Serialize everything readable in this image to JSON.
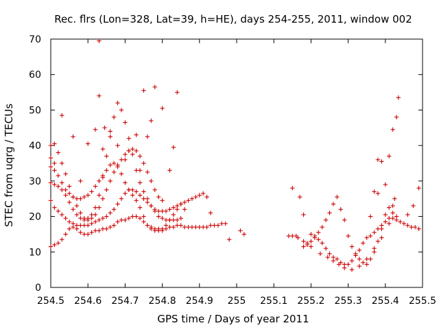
{
  "chart_data": {
    "type": "scatter",
    "title": "Rec. flrs (Lon=328, Lat=39, h=HE), days 254-255, 2011, window 002",
    "xlabel": "GPS time / Days of year 2011",
    "ylabel": "STEC from uqrg / TECUs",
    "xlim": [
      254.5,
      255.5
    ],
    "ylim": [
      0,
      70
    ],
    "xticks": [
      254.5,
      254.6,
      254.7,
      254.8,
      254.9,
      255.0,
      255.1,
      255.2,
      255.3,
      255.4,
      255.5
    ],
    "xtick_labels": [
      "254.5",
      "254.6",
      "254.7",
      "254.8",
      "254.9",
      "255",
      "255.1",
      "255.2",
      "255.3",
      "255.4",
      "255.5"
    ],
    "yticks": [
      0,
      10,
      20,
      30,
      40,
      50,
      60,
      70
    ],
    "ytick_labels": [
      "0",
      "10",
      "20",
      "30",
      "40",
      "50",
      "60",
      "70"
    ],
    "grid": false,
    "legend": "none",
    "marker": "+",
    "series": [
      {
        "color": "#cc0000",
        "x": [
          254.5,
          254.51,
          254.52,
          254.53,
          254.54,
          254.55,
          254.56,
          254.57,
          254.58,
          254.59,
          254.6,
          254.61,
          254.62,
          254.63,
          254.64,
          254.65,
          254.66,
          254.67,
          254.68,
          254.69,
          254.7,
          254.71,
          254.72,
          254.73,
          254.74,
          254.75,
          254.76,
          254.77,
          254.78,
          254.79,
          254.8,
          254.81,
          254.82,
          254.83,
          254.84,
          254.85,
          254.86,
          254.87,
          254.88,
          254.89,
          254.9,
          254.91,
          254.92,
          254.93,
          254.94,
          254.95,
          254.96,
          254.97,
          254.98,
          254.5,
          254.51,
          254.52,
          254.53,
          254.54,
          254.55,
          254.56,
          254.57,
          254.58,
          254.59,
          254.6,
          254.61,
          254.62,
          254.63,
          254.64,
          254.65,
          254.66,
          254.67,
          254.68,
          254.69,
          254.7,
          254.71,
          254.72,
          254.73,
          254.74,
          254.75,
          254.76,
          254.77,
          254.78,
          254.79,
          254.8,
          254.81,
          254.82,
          254.83,
          254.84,
          254.85,
          254.86,
          254.87,
          254.88,
          254.89,
          254.9,
          254.91,
          254.92,
          254.93,
          254.5,
          254.51,
          254.52,
          254.53,
          254.54,
          254.55,
          254.56,
          254.57,
          254.58,
          254.59,
          254.6,
          254.61,
          254.62,
          254.63,
          254.64,
          254.65,
          254.66,
          254.67,
          254.68,
          254.69,
          254.7,
          254.71,
          254.72,
          254.73,
          254.74,
          254.75,
          254.76,
          254.77,
          254.78,
          254.79,
          254.8,
          254.81,
          254.82,
          254.83,
          254.84,
          254.85,
          254.86,
          254.5,
          254.51,
          254.52,
          254.53,
          254.54,
          254.55,
          254.56,
          254.57,
          254.58,
          254.59,
          254.6,
          254.61,
          254.62,
          254.63,
          254.64,
          254.65,
          254.66,
          254.67,
          254.68,
          254.69,
          254.7,
          254.71,
          254.72,
          254.73,
          254.74,
          254.75,
          254.76,
          254.77,
          254.78,
          254.79,
          254.8,
          254.5,
          254.51,
          254.52,
          254.53,
          254.54,
          254.55,
          254.56,
          254.57,
          254.58,
          254.59,
          254.6,
          254.61,
          254.62,
          254.63,
          254.64,
          254.65,
          254.66,
          254.67,
          254.68,
          254.69,
          254.7,
          254.71,
          254.72,
          254.73,
          254.74,
          254.75,
          254.76,
          254.77,
          254.78,
          254.79,
          254.8,
          254.81,
          254.82,
          254.83,
          254.84,
          254.85,
          254.5,
          254.51,
          254.53,
          254.56,
          254.58,
          254.6,
          254.62,
          254.63,
          254.64,
          254.66,
          254.68,
          254.7,
          254.71,
          254.73,
          254.75,
          254.76,
          254.78,
          254.8,
          254.82,
          254.84,
          254.63,
          254.74,
          254.77,
          254.83,
          254.645,
          255.01,
          255.02,
          255.14,
          255.15,
          255.16,
          255.17,
          255.18,
          255.19,
          255.2,
          255.21,
          255.22,
          255.23,
          255.24,
          255.25,
          255.26,
          255.27,
          255.28,
          255.29,
          255.3,
          255.31,
          255.32,
          255.33,
          255.34,
          255.35,
          255.36,
          255.37,
          255.38,
          255.39,
          255.4,
          255.41,
          255.42,
          255.43,
          255.44,
          255.45,
          255.46,
          255.47,
          255.48,
          255.49,
          255.18,
          255.19,
          255.2,
          255.21,
          255.22,
          255.23,
          255.24,
          255.25,
          255.26,
          255.27,
          255.28,
          255.29,
          255.3,
          255.31,
          255.32,
          255.33,
          255.34,
          255.35,
          255.36,
          255.37,
          255.38,
          255.39,
          255.4,
          255.41,
          255.42,
          255.43,
          255.15,
          255.165,
          255.18,
          255.2,
          255.225,
          255.245,
          255.26,
          255.275,
          255.29,
          255.31,
          255.33,
          255.35,
          255.37,
          255.39,
          255.41,
          255.42,
          255.425,
          255.49,
          255.38,
          255.39,
          255.4,
          255.36,
          255.37,
          255.38
        ],
        "y": [
          11.5,
          12.0,
          12.5,
          13.5,
          15.0,
          16.5,
          17.0,
          16.5,
          15.5,
          15.0,
          15.0,
          15.5,
          16.0,
          16.0,
          16.5,
          16.5,
          17.0,
          17.5,
          18.5,
          19.0,
          19.0,
          19.5,
          20.0,
          20.0,
          19.5,
          18.5,
          17.5,
          17.0,
          16.5,
          16.5,
          16.0,
          16.5,
          17.0,
          17.0,
          17.5,
          17.5,
          17.0,
          17.0,
          17.0,
          17.0,
          17.0,
          17.0,
          17.0,
          17.5,
          17.5,
          17.5,
          18.0,
          18.0,
          13.5,
          24.5,
          22.5,
          21.5,
          20.5,
          19.5,
          18.5,
          18.0,
          17.5,
          17.5,
          17.5,
          17.5,
          18.0,
          18.5,
          19.0,
          19.5,
          20.0,
          21.0,
          22.0,
          23.5,
          25.0,
          26.5,
          27.5,
          27.5,
          27.0,
          26.0,
          25.0,
          24.0,
          23.0,
          22.0,
          21.5,
          21.5,
          21.5,
          22.0,
          22.5,
          23.0,
          23.5,
          24.0,
          24.5,
          25.0,
          25.5,
          26.0,
          26.5,
          25.5,
          21.0,
          34.0,
          33.0,
          31.5,
          29.5,
          27.5,
          26.5,
          25.5,
          25.0,
          25.0,
          25.5,
          26.0,
          27.0,
          28.5,
          30.0,
          31.5,
          33.0,
          34.5,
          35.0,
          34.0,
          32.0,
          29.5,
          27.5,
          26.0,
          24.5,
          22.5,
          20.0,
          17.5,
          16.5,
          16.0,
          16.0,
          16.5,
          17.5,
          19.0,
          20.5,
          22.0,
          23.5,
          22.0,
          40.0,
          40.5,
          38.0,
          35.0,
          32.0,
          28.5,
          25.5,
          23.0,
          21.0,
          19.5,
          19.0,
          19.5,
          20.5,
          22.5,
          25.0,
          27.5,
          30.0,
          32.5,
          34.5,
          36.0,
          37.5,
          38.5,
          39.0,
          38.5,
          37.0,
          35.0,
          32.5,
          30.0,
          27.5,
          25.5,
          24.5,
          29.5,
          29.0,
          28.5,
          27.5,
          26.0,
          24.0,
          22.0,
          20.5,
          19.5,
          19.0,
          19.5,
          20.5,
          22.5,
          26.0,
          31.0,
          37.0,
          42.5,
          48.0,
          52.0,
          50.0,
          46.5,
          42.0,
          37.5,
          33.0,
          29.5,
          27.0,
          25.0,
          23.0,
          21.5,
          20.0,
          19.5,
          19.0,
          19.0,
          19.0,
          19.0,
          19.5,
          36.5,
          35.0,
          48.5,
          42.5,
          30.0,
          40.5,
          44.5,
          54.0,
          39.0,
          44.0,
          40.0,
          36.0,
          38.5,
          43.0,
          55.5,
          42.5,
          56.5,
          50.5,
          33.0,
          55.0,
          69.5,
          33.0,
          47.0,
          39.5,
          45.0,
          16.0,
          15.0,
          14.5,
          28.0,
          14.5,
          25.5,
          20.5,
          12.0,
          15.0,
          14.5,
          13.5,
          12.5,
          11.0,
          9.5,
          8.5,
          8.0,
          7.0,
          6.5,
          6.5,
          7.5,
          9.0,
          10.5,
          12.5,
          14.0,
          14.5,
          15.5,
          16.5,
          17.5,
          18.5,
          19.5,
          19.5,
          19.0,
          18.5,
          18.0,
          17.5,
          17.0,
          17.0,
          16.5,
          11.5,
          12.5,
          13.0,
          14.0,
          15.5,
          17.0,
          19.0,
          21.0,
          23.5,
          25.5,
          22.0,
          19.0,
          14.5,
          11.5,
          9.5,
          8.0,
          7.0,
          6.5,
          8.0,
          10.0,
          13.0,
          16.5,
          20.5,
          22.5,
          21.0,
          20.0,
          14.5,
          14.0,
          13.0,
          11.5,
          9.5,
          8.5,
          7.5,
          6.5,
          5.5,
          5.0,
          6.0,
          8.0,
          11.0,
          14.0,
          18.0,
          23.0,
          25.0,
          28.0,
          36.0,
          35.5,
          29.0,
          20.0,
          27.0,
          26.5
        ]
      },
      {
        "color": "#cc0000",
        "x": [
          255.41,
          255.42,
          255.43,
          255.435,
          255.46,
          255.475
        ],
        "y": [
          37.0,
          44.5,
          48.0,
          53.5,
          20.5,
          23.0
        ]
      }
    ]
  }
}
